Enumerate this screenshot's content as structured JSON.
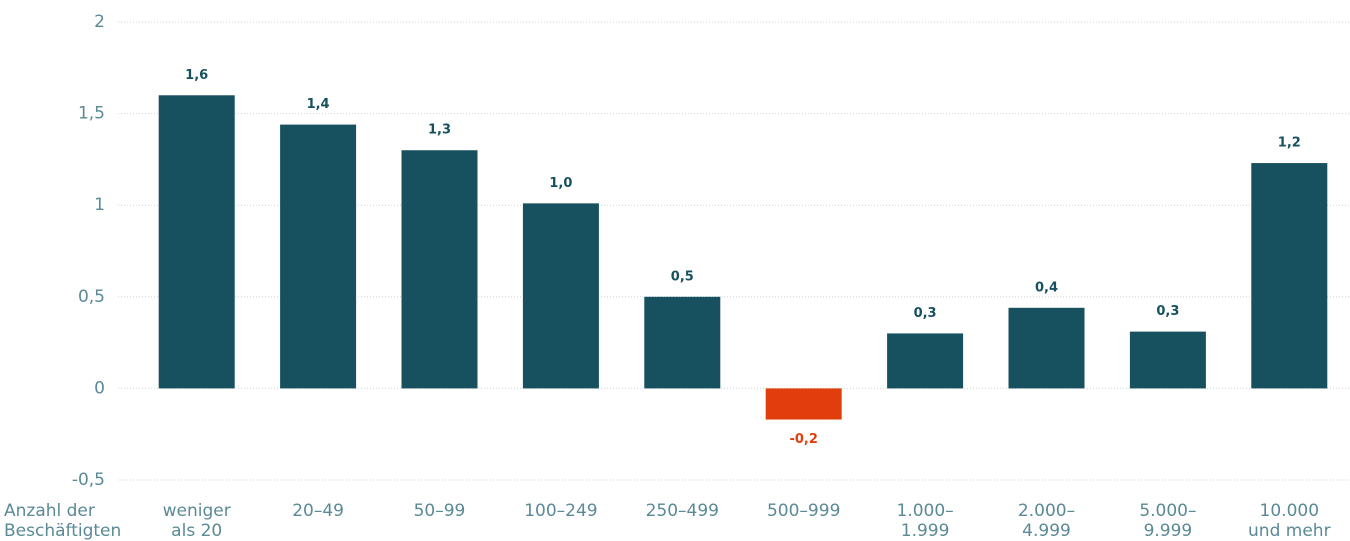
{
  "chart_data": {
    "type": "bar",
    "x_label": "Anzahl der\nBeschäftigten",
    "categories": [
      "weniger\nals 20",
      "20–49",
      "50–99",
      "100–249",
      "250–499",
      "500–999",
      "1.000–\n1.999",
      "2.000–\n4.999",
      "5.000–\n9.999",
      "10.000\nund mehr"
    ],
    "values": [
      1.6,
      1.44,
      1.3,
      1.01,
      0.5,
      -0.17,
      0.3,
      0.44,
      0.31,
      1.23
    ],
    "value_labels": [
      "1,6",
      "1,4",
      "1,3",
      "1,0",
      "0,5",
      "-0,2",
      "0,3",
      "0,4",
      "0,3",
      "1,2"
    ],
    "color": "#17505f",
    "negative_color": "#e03e0c",
    "ylim": [
      -0.5,
      2
    ],
    "yticks": [
      {
        "value": -0.5,
        "label": "-0,5"
      },
      0,
      {
        "value": 0.5,
        "label": "0,5"
      },
      1,
      {
        "value": 1.5,
        "label": "1,5"
      },
      2
    ],
    "grid": true
  }
}
